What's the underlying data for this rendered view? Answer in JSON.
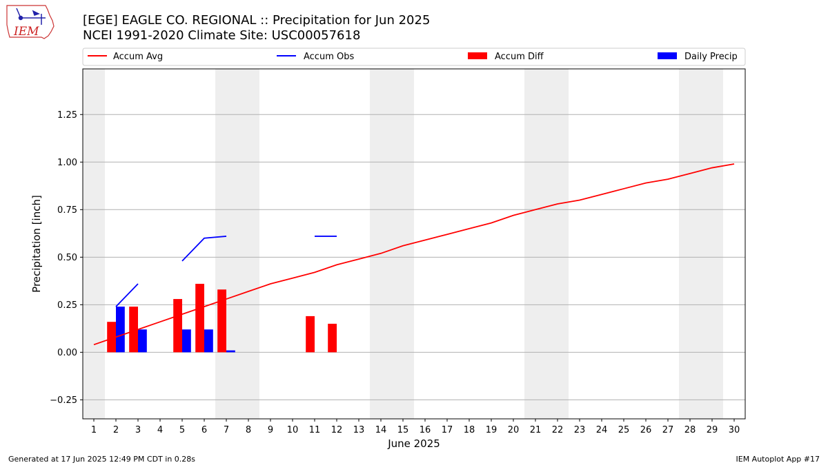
{
  "header": {
    "title_line1": "[EGE] EAGLE CO. REGIONAL :: Precipitation for Jun 2025",
    "title_line2": "NCEI 1991-2020 Climate Site: USC00057618",
    "logo_text": "IEM"
  },
  "footer": {
    "left": "Generated at 17 Jun 2025 12:49 PM CDT in 0.28s",
    "right": "IEM Autoplot App #17"
  },
  "chart_data": {
    "type": "bar",
    "xlabel": "June 2025",
    "ylabel": "Precipitation [inch]",
    "xlim": [
      0.5,
      30.5
    ],
    "ylim": [
      -0.35,
      1.49
    ],
    "x_ticks": [
      1,
      2,
      3,
      4,
      5,
      6,
      7,
      8,
      9,
      10,
      11,
      12,
      13,
      14,
      15,
      16,
      17,
      18,
      19,
      20,
      21,
      22,
      23,
      24,
      25,
      26,
      27,
      28,
      29,
      30
    ],
    "y_ticks": [
      -0.25,
      0.0,
      0.25,
      0.5,
      0.75,
      1.0,
      1.25
    ],
    "grid": "horizontal",
    "weekend_shading": [
      [
        0.5,
        1.5
      ],
      [
        6.5,
        8.5
      ],
      [
        13.5,
        15.5
      ],
      [
        20.5,
        22.5
      ],
      [
        27.5,
        29.5
      ]
    ],
    "legend_position": "top",
    "colors": {
      "accum_avg": "#ff0000",
      "accum_obs": "#0000ff",
      "accum_diff": "#ff0000",
      "daily_precip": "#0000ff",
      "weekend": "#eeeeee",
      "grid": "#b0b0b0"
    },
    "series": [
      {
        "name": "Accum Avg",
        "kind": "line",
        "x": [
          1,
          2,
          3,
          4,
          5,
          6,
          7,
          8,
          9,
          10,
          11,
          12,
          13,
          14,
          15,
          16,
          17,
          18,
          19,
          20,
          21,
          22,
          23,
          24,
          25,
          26,
          27,
          28,
          29,
          30
        ],
        "values": [
          0.04,
          0.08,
          0.12,
          0.16,
          0.2,
          0.24,
          0.28,
          0.32,
          0.36,
          0.39,
          0.42,
          0.46,
          0.49,
          0.52,
          0.56,
          0.59,
          0.62,
          0.65,
          0.68,
          0.72,
          0.75,
          0.78,
          0.8,
          0.83,
          0.86,
          0.89,
          0.91,
          0.94,
          0.97,
          0.99
        ]
      },
      {
        "name": "Accum Obs",
        "kind": "line",
        "segments": [
          {
            "x": [
              2,
              3
            ],
            "values": [
              0.24,
              0.36
            ]
          },
          {
            "x": [
              5,
              6,
              7
            ],
            "values": [
              0.48,
              0.6,
              0.61
            ]
          },
          {
            "x": [
              11,
              12
            ],
            "values": [
              0.61,
              0.61
            ]
          }
        ]
      },
      {
        "name": "Accum Diff",
        "kind": "bar",
        "x": [
          2,
          3,
          5,
          6,
          7,
          11,
          12
        ],
        "values": [
          0.16,
          0.24,
          0.28,
          0.36,
          0.33,
          0.19,
          0.15
        ]
      },
      {
        "name": "Daily Precip",
        "kind": "bar",
        "x": [
          2,
          3,
          5,
          6,
          7
        ],
        "values": [
          0.24,
          0.12,
          0.12,
          0.12,
          0.01
        ]
      }
    ]
  }
}
